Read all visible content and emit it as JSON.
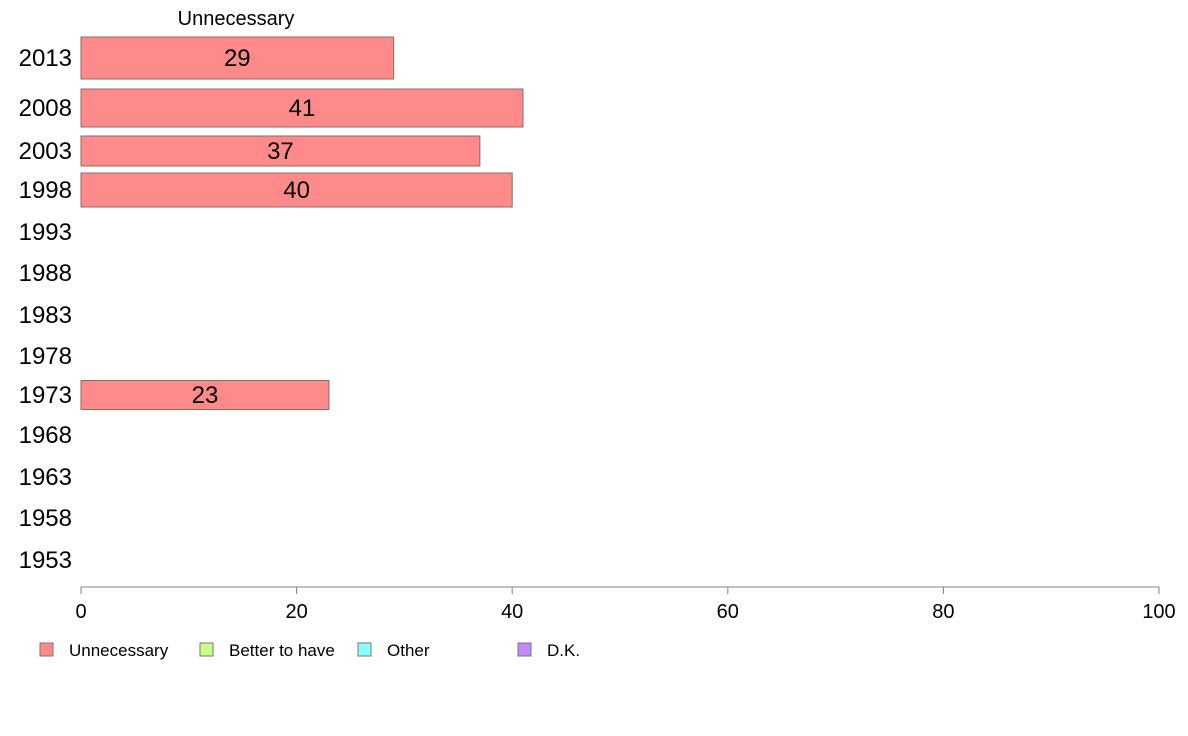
{
  "chart_data": {
    "type": "bar",
    "orientation": "horizontal",
    "categories": [
      "2013",
      "2008",
      "2003",
      "1998",
      "1993",
      "1988",
      "1983",
      "1978",
      "1973",
      "1968",
      "1963",
      "1958",
      "1953"
    ],
    "series": [
      {
        "name": "Unnecessary",
        "color": "#ff8a8a",
        "values": [
          29,
          41,
          37,
          40,
          null,
          null,
          null,
          null,
          23,
          null,
          null,
          null,
          null
        ]
      },
      {
        "name": "Better to have",
        "color": "#ccff8a",
        "values": [
          null,
          null,
          null,
          null,
          null,
          null,
          null,
          null,
          null,
          null,
          null,
          null,
          null
        ]
      },
      {
        "name": "Other",
        "color": "#8affff",
        "values": [
          null,
          null,
          null,
          null,
          null,
          null,
          null,
          null,
          null,
          null,
          null,
          null,
          null
        ]
      },
      {
        "name": "D.K.",
        "color": "#c08aff",
        "values": [
          null,
          null,
          null,
          null,
          null,
          null,
          null,
          null,
          null,
          null,
          null,
          null,
          null
        ]
      }
    ],
    "data_labels": [
      "29",
      "41",
      "37",
      "40",
      "",
      "",
      "",
      "",
      "23",
      "",
      "",
      "",
      ""
    ],
    "top_label": "Unnecessary",
    "xlim": [
      0,
      100
    ],
    "xticks": [
      0,
      20,
      40,
      60,
      80,
      100
    ],
    "grid": false,
    "legend_position": "bottom-left"
  }
}
